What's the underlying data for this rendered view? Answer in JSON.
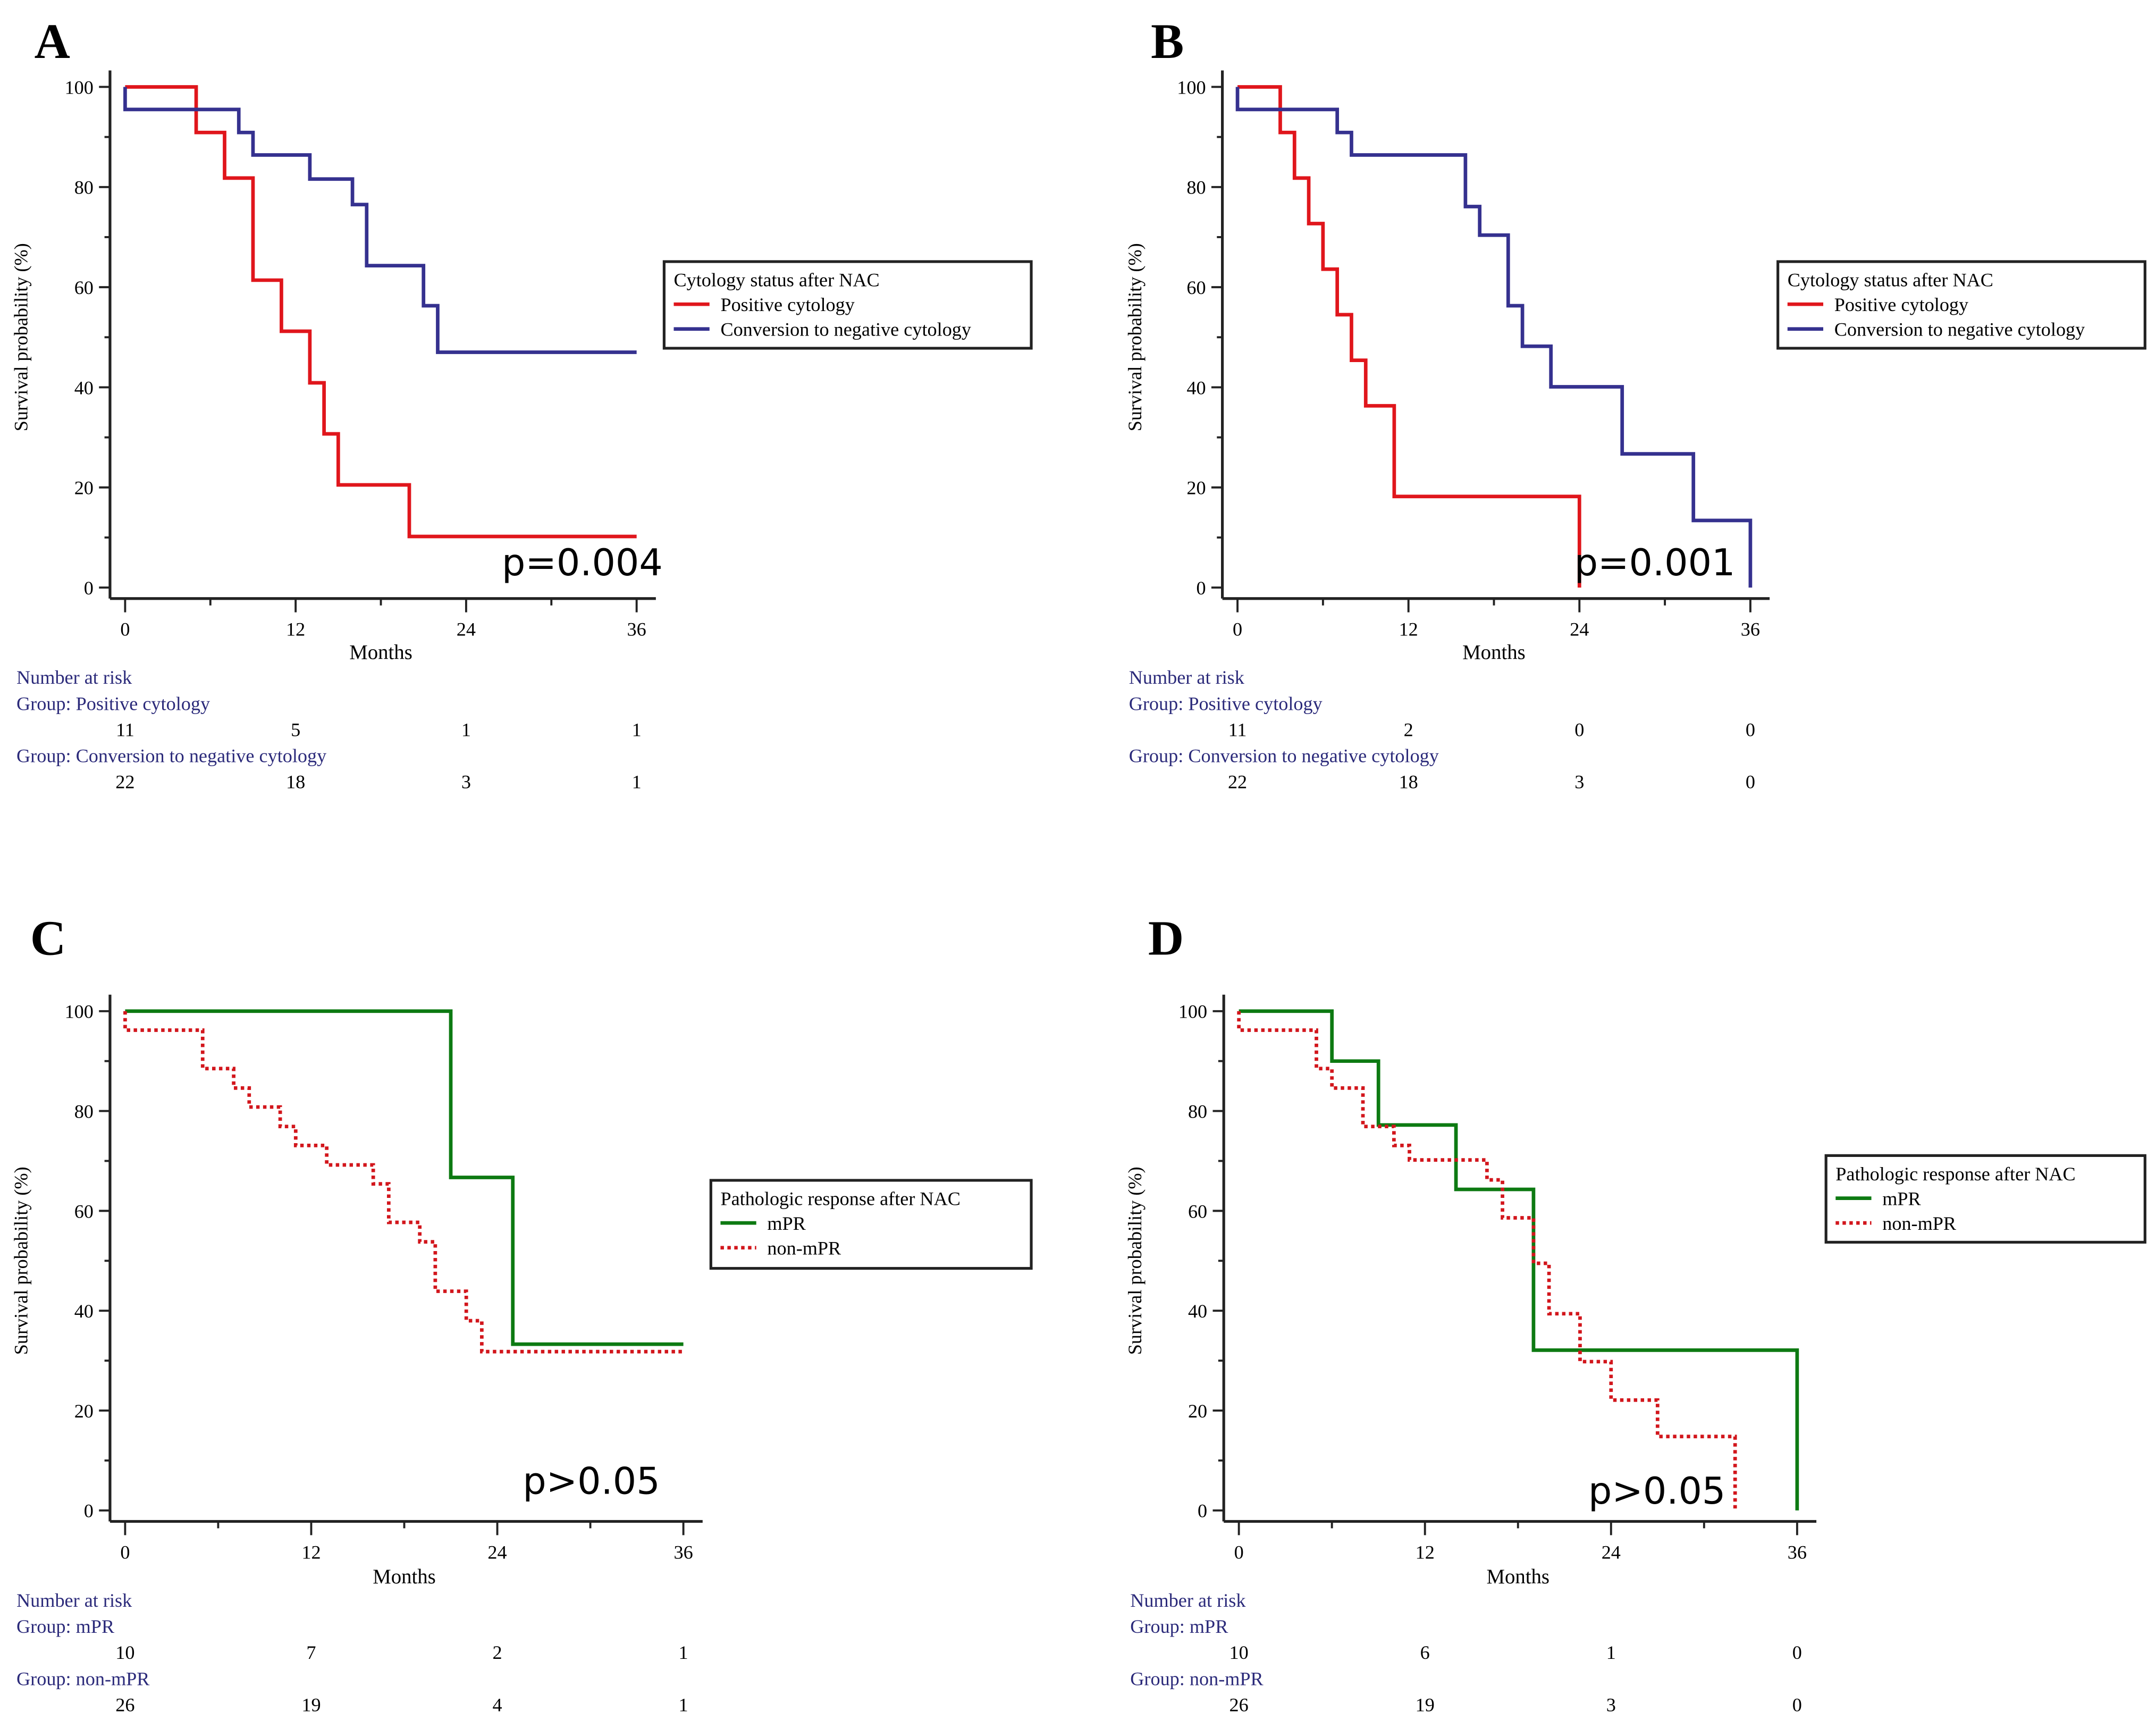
{
  "chart_data": [
    {
      "type": "line",
      "panel_label": "A",
      "xlabel": "Months",
      "ylabel": "Survival probability (%)",
      "xlim": [
        0,
        36
      ],
      "ylim": [
        0,
        100
      ],
      "xticks": [
        0,
        12,
        24,
        36
      ],
      "yticks": [
        0,
        20,
        40,
        60,
        80,
        100
      ],
      "legend_title": "Cytology status after NAC",
      "legend_position": "right",
      "p_value": "p=0.004",
      "series": [
        {
          "name": "Positive cytology",
          "color": "#e0161c",
          "style": "solid",
          "steps": [
            [
              0,
              100
            ],
            [
              5,
              90.9
            ],
            [
              7,
              81.8
            ],
            [
              9,
              61.4
            ],
            [
              11,
              51.2
            ],
            [
              13,
              40.9
            ],
            [
              14,
              30.7
            ],
            [
              15,
              20.5
            ],
            [
              20,
              10.2
            ],
            [
              36,
              10.2
            ]
          ]
        },
        {
          "name": "Conversion to negative cytology",
          "color": "#35318f",
          "style": "solid",
          "steps": [
            [
              0,
              95.5
            ],
            [
              8,
              90.9
            ],
            [
              9,
              86.4
            ],
            [
              13,
              81.6
            ],
            [
              16,
              76.5
            ],
            [
              17,
              64.3
            ],
            [
              21,
              56.3
            ],
            [
              22,
              47.0
            ],
            [
              36,
              47.0
            ]
          ]
        }
      ],
      "risk_title": "Number at risk",
      "risk_groups": [
        {
          "label": "Group: Positive cytology",
          "counts": [
            "11",
            "5",
            "1",
            "1"
          ]
        },
        {
          "label": "Group: Conversion to negative cytology",
          "counts": [
            "22",
            "18",
            "3",
            "1"
          ]
        }
      ]
    },
    {
      "type": "line",
      "panel_label": "B",
      "xlabel": "Months",
      "ylabel": "Survival probability (%)",
      "xlim": [
        0,
        36
      ],
      "ylim": [
        0,
        100
      ],
      "xticks": [
        0,
        12,
        24,
        36
      ],
      "yticks": [
        0,
        20,
        40,
        60,
        80,
        100
      ],
      "legend_title": "Cytology status after NAC",
      "legend_position": "right",
      "p_value": "p=0.001",
      "series": [
        {
          "name": "Positive cytology",
          "color": "#e0161c",
          "style": "solid",
          "steps": [
            [
              0,
              100
            ],
            [
              3,
              90.9
            ],
            [
              4,
              81.8
            ],
            [
              5,
              72.7
            ],
            [
              6,
              63.6
            ],
            [
              7,
              54.5
            ],
            [
              8,
              45.4
            ],
            [
              9,
              36.3
            ],
            [
              11,
              18.2
            ],
            [
              24,
              0
            ]
          ]
        },
        {
          "name": "Conversion to negative cytology",
          "color": "#35318f",
          "style": "solid",
          "steps": [
            [
              0,
              95.5
            ],
            [
              7,
              90.9
            ],
            [
              8,
              86.4
            ],
            [
              16,
              76.1
            ],
            [
              17,
              70.4
            ],
            [
              19,
              56.3
            ],
            [
              20,
              48.2
            ],
            [
              22,
              40.1
            ],
            [
              27,
              26.7
            ],
            [
              32,
              13.4
            ],
            [
              36,
              0
            ]
          ]
        }
      ],
      "risk_title": "Number at risk",
      "risk_groups": [
        {
          "label": "Group: Positive cytology",
          "counts": [
            "11",
            "2",
            "0",
            "0"
          ]
        },
        {
          "label": "Group: Conversion to negative cytology",
          "counts": [
            "22",
            "18",
            "3",
            "0"
          ]
        }
      ]
    },
    {
      "type": "line",
      "panel_label": "C",
      "xlabel": "Months",
      "ylabel": "Survival probability (%)",
      "xlim": [
        0,
        36
      ],
      "ylim": [
        0,
        100
      ],
      "xticks": [
        0,
        12,
        24,
        36
      ],
      "yticks": [
        0,
        20,
        40,
        60,
        80,
        100
      ],
      "legend_title": "Pathologic response after NAC",
      "legend_position": "right",
      "p_value": "p>0.05",
      "series": [
        {
          "name": "mPR",
          "color": "#0d7a12",
          "style": "solid",
          "steps": [
            [
              0,
              100
            ],
            [
              21,
              66.7
            ],
            [
              25,
              33.3
            ],
            [
              36,
              33.3
            ]
          ]
        },
        {
          "name": "non-mPR",
          "color": "#d2161c",
          "style": "dotted",
          "steps": [
            [
              0,
              96.2
            ],
            [
              5,
              88.5
            ],
            [
              7,
              84.6
            ],
            [
              8,
              80.8
            ],
            [
              10,
              76.9
            ],
            [
              11,
              73.1
            ],
            [
              13,
              69.2
            ],
            [
              16,
              65.4
            ],
            [
              17,
              57.7
            ],
            [
              19,
              53.8
            ],
            [
              20,
              43.9
            ],
            [
              22,
              38.0
            ],
            [
              23,
              31.8
            ],
            [
              36,
              31.8
            ]
          ]
        }
      ],
      "risk_title": "Number at risk",
      "risk_groups": [
        {
          "label": "Group: mPR",
          "counts": [
            "10",
            "7",
            "2",
            "1"
          ]
        },
        {
          "label": "Group: non-mPR",
          "counts": [
            "26",
            "19",
            "4",
            "1"
          ]
        }
      ]
    },
    {
      "type": "line",
      "panel_label": "D",
      "xlabel": "Months",
      "ylabel": "Survival probability (%)",
      "xlim": [
        0,
        36
      ],
      "ylim": [
        0,
        100
      ],
      "xticks": [
        0,
        12,
        24,
        36
      ],
      "yticks": [
        0,
        20,
        40,
        60,
        80,
        100
      ],
      "legend_title": "Pathologic response after NAC",
      "legend_position": "right",
      "p_value": "p>0.05",
      "series": [
        {
          "name": "mPR",
          "color": "#0d7a12",
          "style": "solid",
          "steps": [
            [
              0,
              100
            ],
            [
              6,
              90
            ],
            [
              9,
              77.2
            ],
            [
              14,
              64.3
            ],
            [
              19,
              32.1
            ],
            [
              36,
              0
            ]
          ]
        },
        {
          "name": "non-mPR",
          "color": "#d2161c",
          "style": "dotted",
          "steps": [
            [
              0,
              96.2
            ],
            [
              5,
              88.5
            ],
            [
              6,
              84.6
            ],
            [
              8,
              76.9
            ],
            [
              10,
              73.1
            ],
            [
              11,
              70.2
            ],
            [
              16,
              66.2
            ],
            [
              17,
              58.6
            ],
            [
              19,
              49.5
            ],
            [
              20,
              39.4
            ],
            [
              22,
              29.8
            ],
            [
              24,
              22.1
            ],
            [
              27,
              14.8
            ],
            [
              32,
              0
            ]
          ]
        }
      ],
      "risk_title": "Number at risk",
      "risk_groups": [
        {
          "label": "Group: mPR",
          "counts": [
            "10",
            "6",
            "1",
            "0"
          ]
        },
        {
          "label": "Group: non-mPR",
          "counts": [
            "26",
            "19",
            "3",
            "0"
          ]
        }
      ]
    }
  ]
}
